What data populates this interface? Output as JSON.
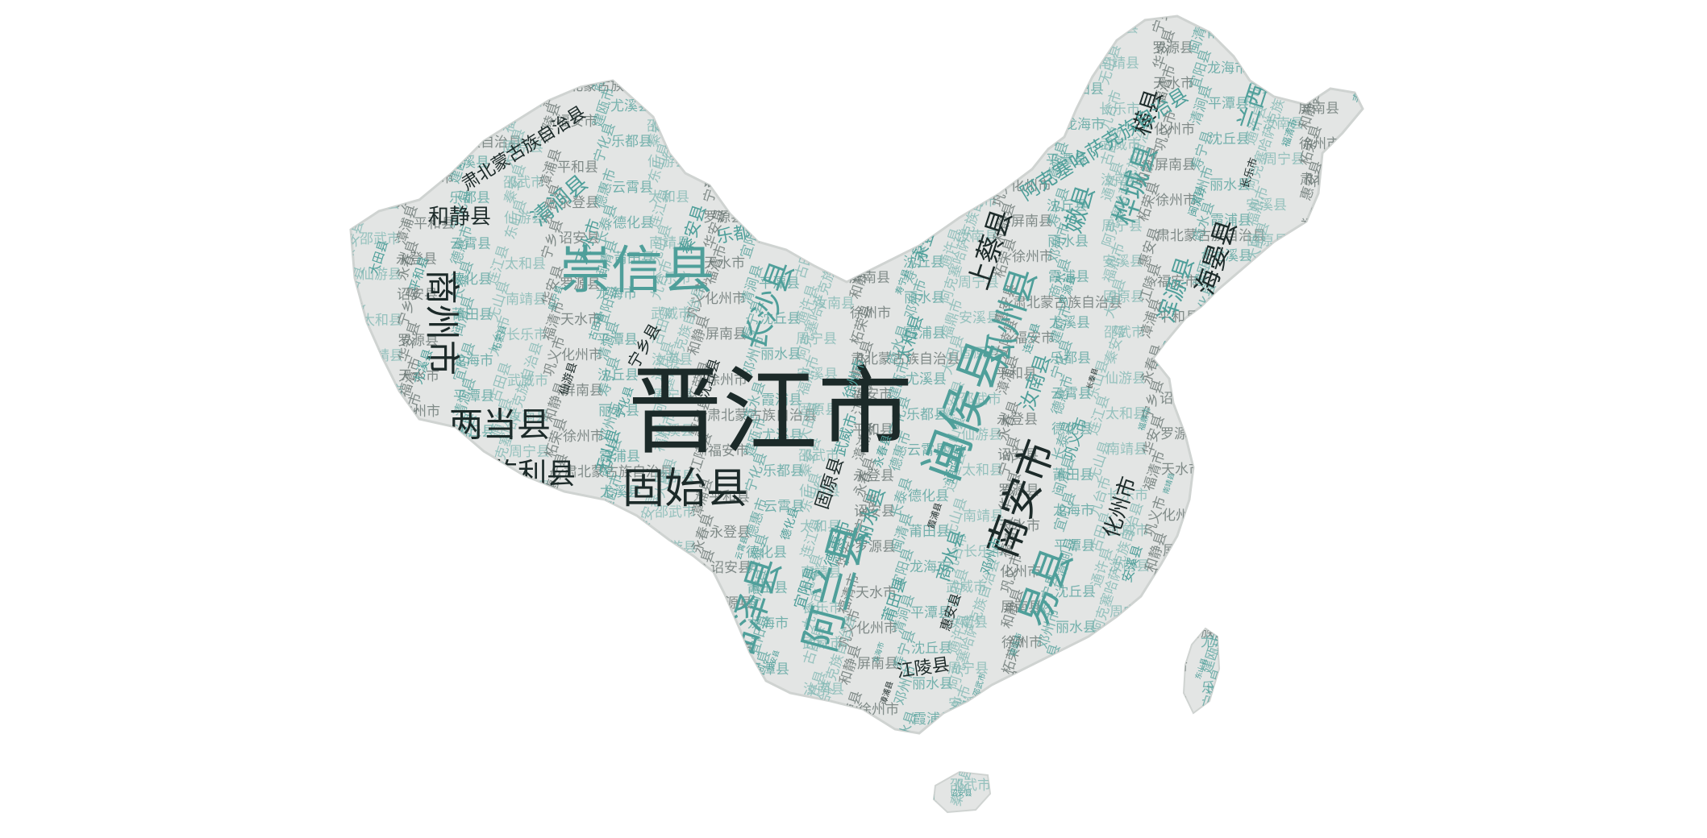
{
  "palette": {
    "background": "#ffffff",
    "map_fill": "#e3e5e4",
    "dark": "#1c2a29",
    "dark_alt": "#243533",
    "teal": "#4f9f9a",
    "teal_light": "#7bb5b1",
    "grey": "#5f6c6a"
  },
  "words": [
    {
      "text": "晋江市",
      "weight": 100,
      "tone": "dark"
    },
    {
      "text": "崇信县",
      "weight": 62,
      "tone": "teal"
    },
    {
      "text": "闽侯县",
      "weight": 60,
      "tone": "teal"
    },
    {
      "text": "固始县",
      "weight": 55,
      "tone": "dark"
    },
    {
      "text": "阿兰县",
      "weight": 54,
      "tone": "teal"
    },
    {
      "text": "南安市",
      "weight": 50,
      "tone": "dark"
    },
    {
      "text": "易县",
      "weight": 48,
      "tone": "teal"
    },
    {
      "text": "临泽县",
      "weight": 46,
      "tone": "teal"
    },
    {
      "text": "两当县",
      "weight": 45,
      "tone": "dark"
    },
    {
      "text": "商州市",
      "weight": 44,
      "tone": "dark"
    },
    {
      "text": "瓜州县",
      "weight": 42,
      "tone": "teal"
    },
    {
      "text": "长沙县",
      "weight": 38,
      "tone": "teal"
    },
    {
      "text": "监利县",
      "weight": 36,
      "tone": "dark"
    },
    {
      "text": "上蔡县",
      "weight": 34,
      "tone": "dark"
    },
    {
      "text": "桦城县",
      "weight": 34,
      "tone": "teal"
    },
    {
      "text": "海晏县",
      "weight": 32,
      "tone": "dark"
    },
    {
      "text": "嫩县",
      "weight": 30,
      "tone": "teal"
    },
    {
      "text": "浑源县",
      "weight": 30,
      "tone": "teal"
    },
    {
      "text": "横县",
      "weight": 29,
      "tone": "dark"
    },
    {
      "text": "兰西县",
      "weight": 29,
      "tone": "teal"
    },
    {
      "text": "九台市",
      "weight": 28,
      "tone": "teal"
    },
    {
      "text": "化州市",
      "weight": 28,
      "tone": "dark"
    },
    {
      "text": "清涧县",
      "weight": 27,
      "tone": "teal"
    },
    {
      "text": "汝南县",
      "weight": 27,
      "tone": "teal"
    },
    {
      "text": "和静县",
      "weight": 26,
      "tone": "dark"
    },
    {
      "text": "丽水县",
      "weight": 26,
      "tone": "teal"
    },
    {
      "text": "阿克塞哈萨克族自治县",
      "weight": 24,
      "tone": "teal"
    },
    {
      "text": "肃北蒙古族自治县",
      "weight": 22,
      "tone": "dark"
    },
    {
      "text": "商水县",
      "weight": 24,
      "tone": "teal"
    },
    {
      "text": "固原县",
      "weight": 22,
      "tone": "dark"
    },
    {
      "text": "江陵县",
      "weight": 22,
      "tone": "dark"
    },
    {
      "text": "乐都县",
      "weight": 21,
      "tone": "teal"
    },
    {
      "text": "秦安县",
      "weight": 21,
      "tone": "teal"
    },
    {
      "text": "永登县",
      "weight": 21,
      "tone": "teal"
    },
    {
      "text": "德惠市",
      "weight": 20,
      "tone": "teal"
    },
    {
      "text": "太和县",
      "weight": 20,
      "tone": "teal"
    },
    {
      "text": "宁乡县",
      "weight": 20,
      "tone": "dark"
    },
    {
      "text": "莆田县",
      "weight": 19,
      "tone": "teal"
    },
    {
      "text": "无山县",
      "weight": 19,
      "tone": "teal"
    },
    {
      "text": "天水市",
      "weight": 19,
      "tone": "teal"
    },
    {
      "text": "宜阳县",
      "weight": 18,
      "tone": "teal"
    },
    {
      "text": "武威市",
      "weight": 18,
      "tone": "teal"
    },
    {
      "text": "巩义市",
      "weight": 18,
      "tone": "teal"
    },
    {
      "text": "沈丘县",
      "weight": 17,
      "tone": "dark"
    },
    {
      "text": "通许县",
      "weight": 17,
      "tone": "teal"
    },
    {
      "text": "徐州市",
      "weight": 17,
      "tone": "teal"
    },
    {
      "text": "邓州市",
      "weight": 16,
      "tone": "teal"
    },
    {
      "text": "安溪县",
      "weight": 16,
      "tone": "teal"
    },
    {
      "text": "惠安县",
      "weight": 16,
      "tone": "dark"
    },
    {
      "text": "尤溪县",
      "weight": 15,
      "tone": "teal"
    },
    {
      "text": "大田县",
      "weight": 15,
      "tone": "teal"
    },
    {
      "text": "平和县",
      "weight": 15,
      "tone": "teal"
    },
    {
      "text": "宁化县",
      "weight": 14,
      "tone": "teal"
    },
    {
      "text": "仙游县",
      "weight": 14,
      "tone": "dark"
    },
    {
      "text": "永春县",
      "weight": 14,
      "tone": "teal"
    },
    {
      "text": "德化县",
      "weight": 14,
      "tone": "teal"
    },
    {
      "text": "连江县",
      "weight": 13,
      "tone": "teal"
    },
    {
      "text": "罗源县",
      "weight": 13,
      "tone": "teal"
    },
    {
      "text": "闽清县",
      "weight": 13,
      "tone": "teal"
    },
    {
      "text": "长乐市",
      "weight": 13,
      "tone": "dark"
    },
    {
      "text": "福清市",
      "weight": 12,
      "tone": "teal"
    },
    {
      "text": "平潭县",
      "weight": 12,
      "tone": "teal"
    },
    {
      "text": "古田县",
      "weight": 12,
      "tone": "teal"
    },
    {
      "text": "屏南县",
      "weight": 12,
      "tone": "dark"
    },
    {
      "text": "寿宁县",
      "weight": 11,
      "tone": "teal"
    },
    {
      "text": "周宁县",
      "weight": 11,
      "tone": "teal"
    },
    {
      "text": "柘荣县",
      "weight": 11,
      "tone": "teal"
    },
    {
      "text": "霞浦县",
      "weight": 11,
      "tone": "dark"
    },
    {
      "text": "福鼎市",
      "weight": 10,
      "tone": "teal"
    },
    {
      "text": "福安市",
      "weight": 10,
      "tone": "teal"
    },
    {
      "text": "建瓯市",
      "weight": 10,
      "tone": "teal"
    },
    {
      "text": "邵武市",
      "weight": 10,
      "tone": "teal"
    },
    {
      "text": "漳浦县",
      "weight": 10,
      "tone": "dark"
    },
    {
      "text": "云霄县",
      "weight": 10,
      "tone": "teal"
    },
    {
      "text": "东山县",
      "weight": 9,
      "tone": "teal"
    },
    {
      "text": "诏安县",
      "weight": 9,
      "tone": "teal"
    },
    {
      "text": "长泰县",
      "weight": 9,
      "tone": "dark"
    },
    {
      "text": "南靖县",
      "weight": 9,
      "tone": "teal"
    },
    {
      "text": "华安县",
      "weight": 9,
      "tone": "teal"
    },
    {
      "text": "龙海市",
      "weight": 9,
      "tone": "teal"
    }
  ]
}
